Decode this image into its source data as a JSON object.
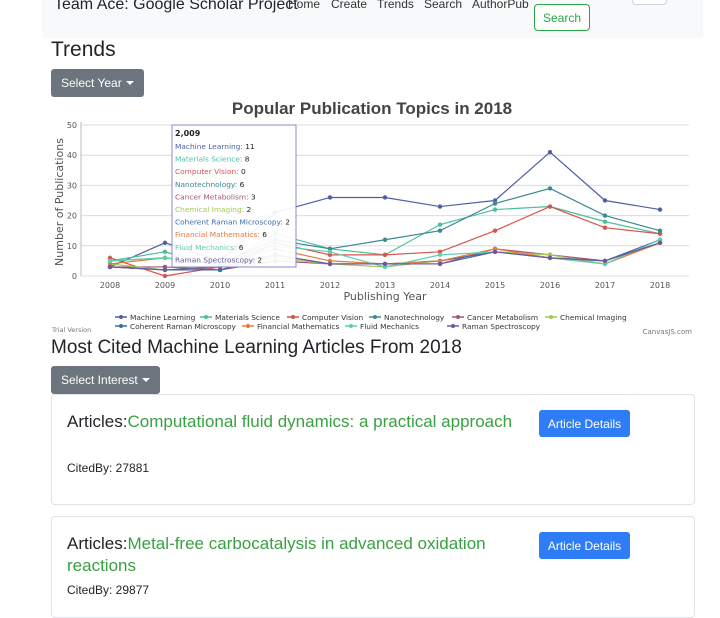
{
  "navbar": {
    "brand": "Team Ace: Google Scholar Project",
    "links": [
      "Home",
      "Create",
      "Trends",
      "Search",
      "AuthorPub"
    ],
    "search_button": "Search"
  },
  "trends": {
    "heading": "Trends",
    "select_year_label": "Select Year"
  },
  "chart_data": {
    "type": "line",
    "title": "Popular Publication Topics in 2018",
    "xlabel": "Publishing Year",
    "ylabel": "Number of Publications",
    "x": [
      2008,
      2009,
      2010,
      2011,
      2012,
      2013,
      2014,
      2015,
      2016,
      2017,
      2018
    ],
    "ylim": [
      0,
      50
    ],
    "yticks": [
      0,
      10,
      20,
      30,
      40,
      50
    ],
    "grid": true,
    "legend_position": "bottom",
    "series": [
      {
        "name": "Machine Learning",
        "color": "#4e5fa8",
        "values": [
          3,
          11,
          5,
          21,
          26,
          26,
          23,
          25,
          41,
          25,
          22
        ]
      },
      {
        "name": "Materials Science",
        "color": "#4bbf9c",
        "values": [
          5,
          8,
          3,
          14,
          9,
          7,
          17,
          22,
          23,
          18,
          14
        ]
      },
      {
        "name": "Computer Vision",
        "color": "#d9534f",
        "values": [
          6,
          0,
          3,
          11,
          7,
          7,
          8,
          15,
          23,
          16,
          14
        ]
      },
      {
        "name": "Nanotechnology",
        "color": "#3a8a94",
        "values": [
          5,
          6,
          4,
          12,
          9,
          12,
          15,
          24,
          29,
          20,
          15
        ]
      },
      {
        "name": "Cancer Metabolism",
        "color": "#a0577a",
        "values": [
          3,
          3,
          2,
          5,
          4,
          4,
          4,
          9,
          7,
          5,
          11
        ]
      },
      {
        "name": "Chemical Imaging",
        "color": "#a5c94f",
        "values": [
          4,
          2,
          3,
          6,
          4,
          3,
          5,
          8,
          7,
          4,
          11
        ]
      },
      {
        "name": "Coherent Raman Microscopy",
        "color": "#3a6ea5",
        "values": [
          3,
          2,
          2,
          7,
          4,
          4,
          5,
          8,
          6,
          5,
          12
        ]
      },
      {
        "name": "Financial Mathematics",
        "color": "#e8793a",
        "values": [
          4,
          6,
          4,
          9,
          5,
          4,
          5,
          9,
          6,
          4,
          11
        ]
      },
      {
        "name": "Fluid Mechanics",
        "color": "#5fcfb0",
        "values": [
          5,
          6,
          4,
          10,
          8,
          3,
          7,
          8,
          6,
          4,
          12
        ]
      },
      {
        "name": "Raman Spectroscopy",
        "color": "#6c5a9e",
        "values": [
          3,
          2,
          3,
          7,
          4,
          4,
          4,
          8,
          6,
          5,
          11
        ]
      }
    ],
    "tooltip": {
      "header": "2,009",
      "rows": [
        {
          "name": "Machine Learning",
          "value": "11"
        },
        {
          "name": "Materials Science",
          "value": "8"
        },
        {
          "name": "Computer Vision",
          "value": "0"
        },
        {
          "name": "Nanotechnology",
          "value": "6"
        },
        {
          "name": "Cancer Metabolism",
          "value": "3"
        },
        {
          "name": "Chemical Imaging",
          "value": "2"
        },
        {
          "name": "Coherent Raman Microscopy",
          "value": "2"
        },
        {
          "name": "Financial Mathematics",
          "value": "6"
        },
        {
          "name": "Fluid Mechanics",
          "value": "6"
        },
        {
          "name": "Raman Spectroscopy",
          "value": "2"
        }
      ]
    },
    "watermark_left": "Trial Version",
    "watermark_right": "CanvasJS.com"
  },
  "cited": {
    "heading": "Most Cited Machine Learning Articles From 2018",
    "select_interest_label": "Select Interest"
  },
  "articles": [
    {
      "prefix": "Articles:",
      "title": "Computational fluid dynamics: a practical approach",
      "cited_label": "CitedBy: 27881",
      "button": "Article Details"
    },
    {
      "prefix": "Articles:",
      "title": "Metal-free carbocatalysis in advanced oxidation reactions",
      "cited_label": "CitedBy: 29877",
      "button": "Article Details"
    }
  ]
}
